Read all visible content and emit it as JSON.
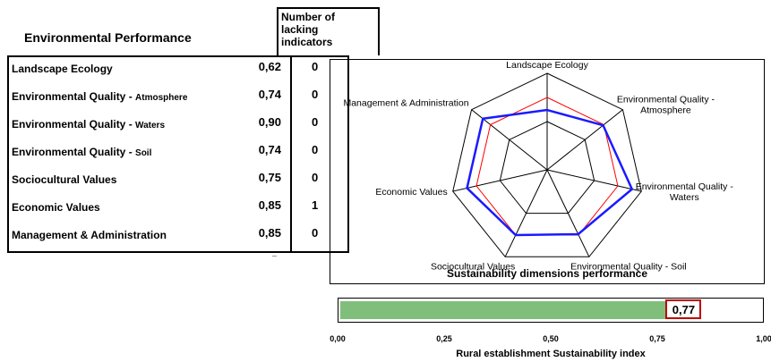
{
  "panel": {
    "title": "Environmental Performance",
    "lacking_header": [
      "Number of",
      "lacking",
      "indicators"
    ]
  },
  "rows": [
    {
      "label": "Landscape Ecology",
      "sub": "",
      "value": "0,62",
      "lacking": "0"
    },
    {
      "label": "Environmental Quality - ",
      "sub": "Atmosphere",
      "value": "0,74",
      "lacking": "0"
    },
    {
      "label": "Environmental Quality - ",
      "sub": "Waters",
      "value": "0,90",
      "lacking": "0"
    },
    {
      "label": "Environmental Quality - ",
      "sub": "Soil",
      "value": "0,74",
      "lacking": "0"
    },
    {
      "label": "Sociocultural Values",
      "sub": "",
      "value": "0,75",
      "lacking": "0"
    },
    {
      "label": "Economic Values",
      "sub": "",
      "value": "0,85",
      "lacking": "1"
    },
    {
      "label": "Management & Administration",
      "sub": "",
      "value": "0,85",
      "lacking": "0"
    }
  ],
  "chart_data": [
    {
      "type": "radar",
      "title": "Sustainability dimensions performance",
      "axes": [
        "Landscape Ecology",
        "Environmental Quality - Atmosphere",
        "Environmental Quality - Waters",
        "Environmental Quality - Soil",
        "Sociocultural Values",
        "Economic Values",
        "Management & Administration"
      ],
      "range": [
        0,
        1
      ],
      "series": [
        {
          "values": [
            0.62,
            0.74,
            0.9,
            0.74,
            0.75,
            0.85,
            0.85
          ],
          "color": "#1a1aff"
        },
        {
          "values": [
            0.75,
            0.75,
            0.75,
            0.75,
            0.75,
            0.75,
            0.75
          ],
          "color": "#ff0000"
        }
      ],
      "label_lines": [
        [
          "Landscape Ecology"
        ],
        [
          "Environmental Quality -",
          "Atmosphere"
        ],
        [
          "Environmental Quality -",
          "Waters"
        ],
        [
          "Environmental Quality - Soil"
        ],
        [
          "Sociocultural Values"
        ],
        [
          "Economic Values"
        ],
        [
          "Management & Administration"
        ]
      ]
    },
    {
      "type": "bar",
      "orientation": "horizontal",
      "title": "Rural establishment Sustainability index",
      "value": 0.77,
      "value_label": "0,77",
      "xlim": [
        0,
        1
      ],
      "ticks": [
        "0,00",
        "0,25",
        "0,50",
        "0,75",
        "1,00"
      ],
      "bar_color": "#80bf7b",
      "label_border_color": "#c00000"
    }
  ]
}
